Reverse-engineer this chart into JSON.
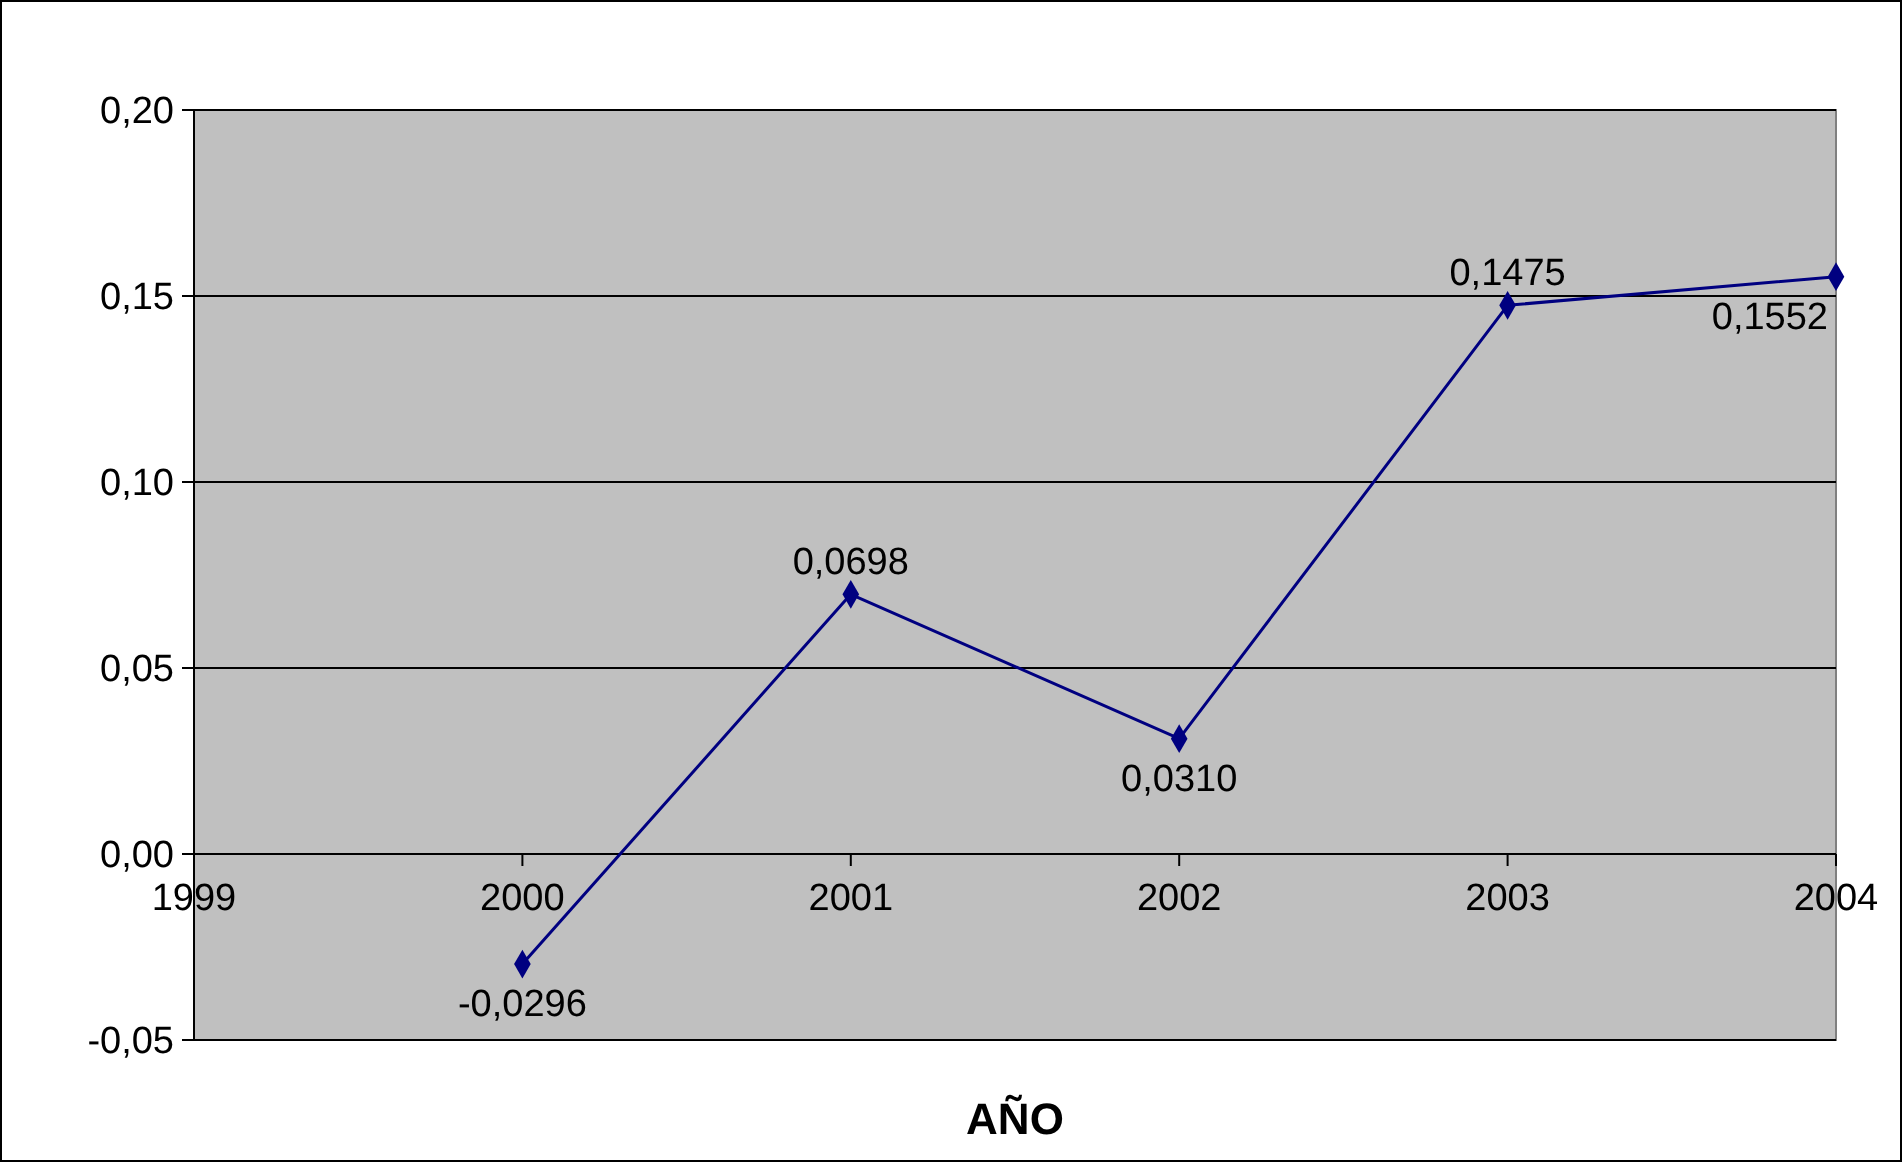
{
  "chart_data": {
    "type": "line",
    "xlabel": "AÑO",
    "x": [
      2000,
      2001,
      2002,
      2003,
      2004
    ],
    "series": [
      {
        "color": "#000080",
        "values": [
          -0.0296,
          0.0698,
          0.031,
          0.1475,
          0.1552
        ],
        "value_labels": [
          "-0,0296",
          "0,0698",
          "0,0310",
          "0,1475",
          "0,1552"
        ]
      }
    ],
    "xlim": [
      1999,
      2004
    ],
    "xticks": [
      1999,
      2000,
      2001,
      2002,
      2003,
      2004
    ],
    "ylim": [
      -0.05,
      0.2
    ],
    "yticks": [
      {
        "value": -0.05,
        "label": "-0,05"
      },
      {
        "value": 0,
        "label": "0,00"
      },
      {
        "value": 0.05,
        "label": "0,05"
      },
      {
        "value": 0.1,
        "label": "0,10"
      },
      {
        "value": 0.15,
        "label": "0,15"
      },
      {
        "value": 0.2,
        "label": "0,20"
      }
    ],
    "grid": "y",
    "marker": "diamond",
    "line_style": "solid"
  }
}
